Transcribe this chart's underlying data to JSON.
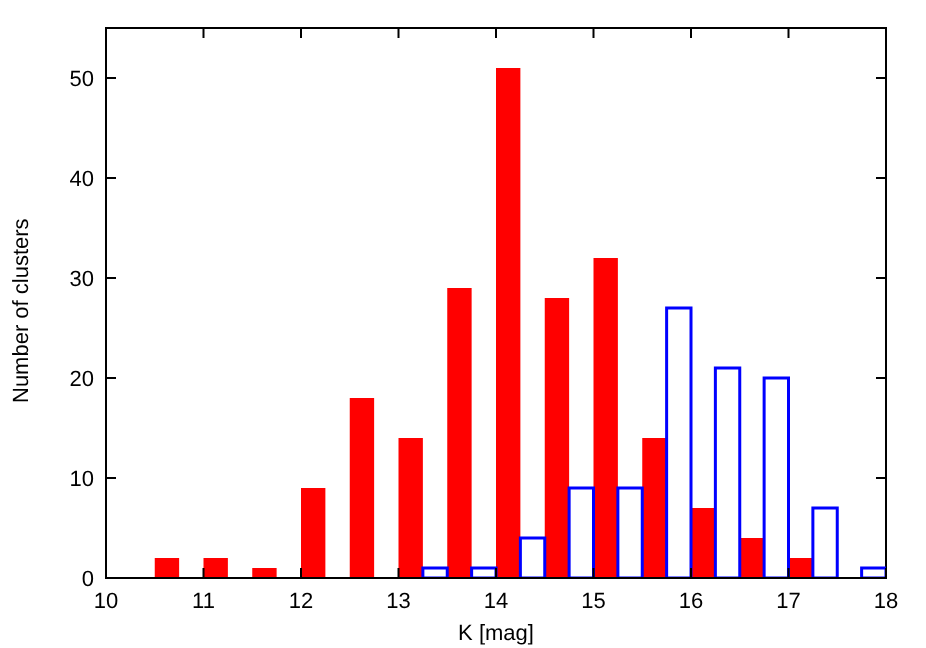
{
  "chart_data": {
    "type": "bar",
    "xlabel": "K [mag]",
    "ylabel": "Number of clusters",
    "series": [
      {
        "color": "#ff0000",
        "x": [
          10.625,
          11.125,
          11.625,
          12.125,
          12.625,
          13.125,
          13.625,
          14.125,
          14.625,
          15.125,
          15.625,
          16.125,
          16.625,
          17.125,
          17.625
        ],
        "values": [
          2,
          2,
          1,
          9,
          18,
          14,
          29,
          51,
          28,
          32,
          14,
          7,
          4,
          2,
          0
        ]
      },
      {
        "color": "#0000ff",
        "x": [
          10.375,
          10.875,
          11.375,
          11.875,
          12.375,
          12.875,
          13.375,
          13.875,
          14.375,
          14.875,
          15.375,
          15.875,
          16.375,
          16.875,
          17.375,
          17.875
        ],
        "values": [
          0,
          0,
          0,
          0,
          0,
          0,
          1,
          1,
          4,
          9,
          9,
          27,
          21,
          20,
          7,
          1
        ]
      }
    ],
    "xlim": [
      10,
      18
    ],
    "xticks": [
      10,
      11,
      12,
      13,
      14,
      15,
      16,
      17,
      18
    ],
    "ylim": [
      0,
      55
    ],
    "yticks": [
      0,
      10,
      20,
      30,
      40,
      50
    ]
  }
}
